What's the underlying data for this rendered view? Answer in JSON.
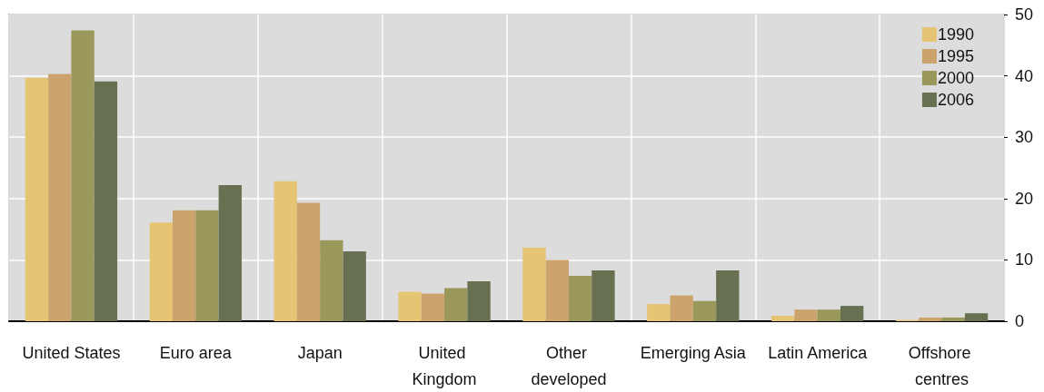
{
  "chart_data": {
    "type": "bar",
    "categories": [
      "United States",
      "Euro area",
      "Japan",
      "United Kingdom",
      "Other developed",
      "Emerging Asia",
      "Latin America",
      "Offshore centres"
    ],
    "series": [
      {
        "name": "1990",
        "color": "#e5c473",
        "values": [
          39.7,
          16.1,
          22.8,
          4.8,
          12.0,
          2.8,
          0.9,
          0.2
        ]
      },
      {
        "name": "1995",
        "color": "#cca36c",
        "values": [
          40.3,
          18.1,
          19.3,
          4.5,
          10.0,
          4.2,
          1.9,
          0.6
        ]
      },
      {
        "name": "2000",
        "color": "#9a985a",
        "values": [
          47.4,
          18.1,
          13.2,
          5.4,
          7.4,
          3.3,
          1.9,
          0.6
        ]
      },
      {
        "name": "2006",
        "color": "#677152",
        "values": [
          39.1,
          22.2,
          11.4,
          6.5,
          8.3,
          8.3,
          2.5,
          1.3
        ]
      }
    ],
    "ylim": [
      0,
      50
    ],
    "yticks": [
      0,
      10,
      20,
      30,
      40,
      50
    ],
    "grid": true,
    "legend": "top right"
  }
}
